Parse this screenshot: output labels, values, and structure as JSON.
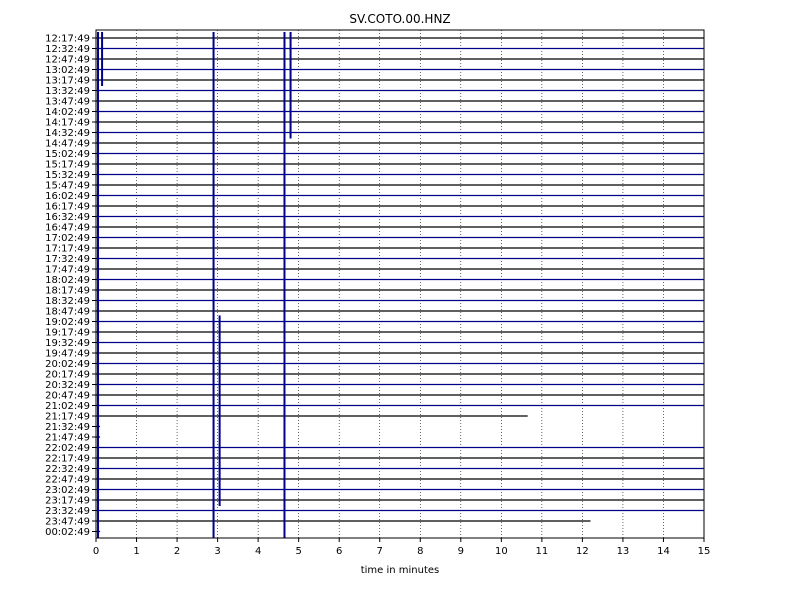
{
  "chart_data": {
    "type": "line",
    "title": "SV.COTO.00.HNZ",
    "xlabel": "time in minutes",
    "ylabel": "",
    "xlim": [
      0,
      15
    ],
    "x_ticks": [
      "0",
      "1",
      "2",
      "3",
      "4",
      "5",
      "6",
      "7",
      "8",
      "9",
      "10",
      "11",
      "12",
      "13",
      "14",
      "15"
    ],
    "grid_x": true,
    "trace_colors": [
      "#000000",
      "#00008b"
    ],
    "rows": [
      {
        "label": "12:17:49",
        "end": 15
      },
      {
        "label": "12:32:49",
        "end": 15
      },
      {
        "label": "12:47:49",
        "end": 15
      },
      {
        "label": "13:02:49",
        "end": 15
      },
      {
        "label": "13:17:49",
        "end": 15
      },
      {
        "label": "13:32:49",
        "end": 15
      },
      {
        "label": "13:47:49",
        "end": 15
      },
      {
        "label": "14:02:49",
        "end": 15
      },
      {
        "label": "14:17:49",
        "end": 15
      },
      {
        "label": "14:32:49",
        "end": 15
      },
      {
        "label": "14:47:49",
        "end": 15
      },
      {
        "label": "15:02:49",
        "end": 15
      },
      {
        "label": "15:17:49",
        "end": 15
      },
      {
        "label": "15:32:49",
        "end": 15
      },
      {
        "label": "15:47:49",
        "end": 15
      },
      {
        "label": "16:02:49",
        "end": 15
      },
      {
        "label": "16:17:49",
        "end": 15
      },
      {
        "label": "16:32:49",
        "end": 15
      },
      {
        "label": "16:47:49",
        "end": 15
      },
      {
        "label": "17:02:49",
        "end": 15
      },
      {
        "label": "17:17:49",
        "end": 15
      },
      {
        "label": "17:32:49",
        "end": 15
      },
      {
        "label": "17:47:49",
        "end": 15
      },
      {
        "label": "18:02:49",
        "end": 15
      },
      {
        "label": "18:17:49",
        "end": 15
      },
      {
        "label": "18:32:49",
        "end": 15
      },
      {
        "label": "18:47:49",
        "end": 15
      },
      {
        "label": "19:02:49",
        "end": 15
      },
      {
        "label": "19:17:49",
        "end": 15
      },
      {
        "label": "19:32:49",
        "end": 15
      },
      {
        "label": "19:47:49",
        "end": 15
      },
      {
        "label": "20:02:49",
        "end": 15
      },
      {
        "label": "20:17:49",
        "end": 15
      },
      {
        "label": "20:32:49",
        "end": 15
      },
      {
        "label": "20:47:49",
        "end": 15
      },
      {
        "label": "21:02:49",
        "end": 15
      },
      {
        "label": "21:17:49",
        "end": 10.65
      },
      {
        "label": "21:32:49",
        "end": 0.1
      },
      {
        "label": "21:47:49",
        "end": 0.1
      },
      {
        "label": "22:02:49",
        "end": 15
      },
      {
        "label": "22:17:49",
        "end": 15
      },
      {
        "label": "22:32:49",
        "end": 15
      },
      {
        "label": "22:47:49",
        "end": 15
      },
      {
        "label": "23:02:49",
        "end": 15
      },
      {
        "label": "23:17:49",
        "end": 15
      },
      {
        "label": "23:32:49",
        "end": 15
      },
      {
        "label": "23:47:49",
        "end": 12.2
      },
      {
        "label": "00:02:49",
        "end": 0.1
      }
    ],
    "spikes": [
      {
        "x": 0.05,
        "row_from": 0,
        "row_to": 47
      },
      {
        "x": 0.15,
        "row_from": 0,
        "row_to": 4
      },
      {
        "x": 2.9,
        "row_from": 0,
        "row_to": 47
      },
      {
        "x": 3.05,
        "row_from": 27,
        "row_to": 44
      },
      {
        "x": 4.65,
        "row_from": 0,
        "row_to": 47
      },
      {
        "x": 4.8,
        "row_from": 0,
        "row_to": 9
      }
    ]
  }
}
